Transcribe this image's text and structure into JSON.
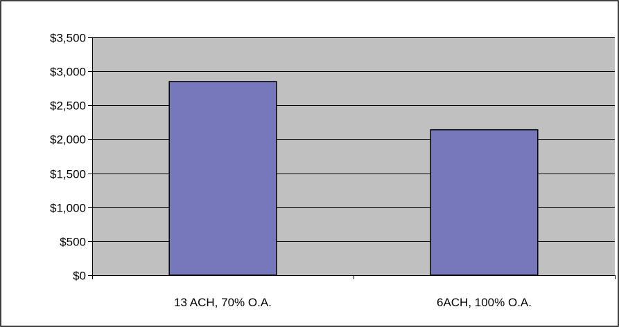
{
  "chart_data": {
    "type": "bar",
    "title": "",
    "xlabel": "",
    "ylabel": "",
    "categories": [
      "13 ACH, 70% O.A.",
      "6ACH, 100% O.A."
    ],
    "values": [
      2850,
      2140
    ],
    "ylim": [
      0,
      3500
    ],
    "yticks": [
      0,
      500,
      1000,
      1500,
      2000,
      2500,
      3000,
      3500
    ],
    "ytick_labels": [
      "$0",
      "$500",
      "$1,000",
      "$1,500",
      "$2,000",
      "$2,500",
      "$3,000",
      "$3,500"
    ],
    "grid": true,
    "legend": "none",
    "colors": {
      "bar": "#7777bb",
      "plot_background": "#c0c0c0",
      "gridline": "#000000",
      "frame": "#000000"
    }
  }
}
